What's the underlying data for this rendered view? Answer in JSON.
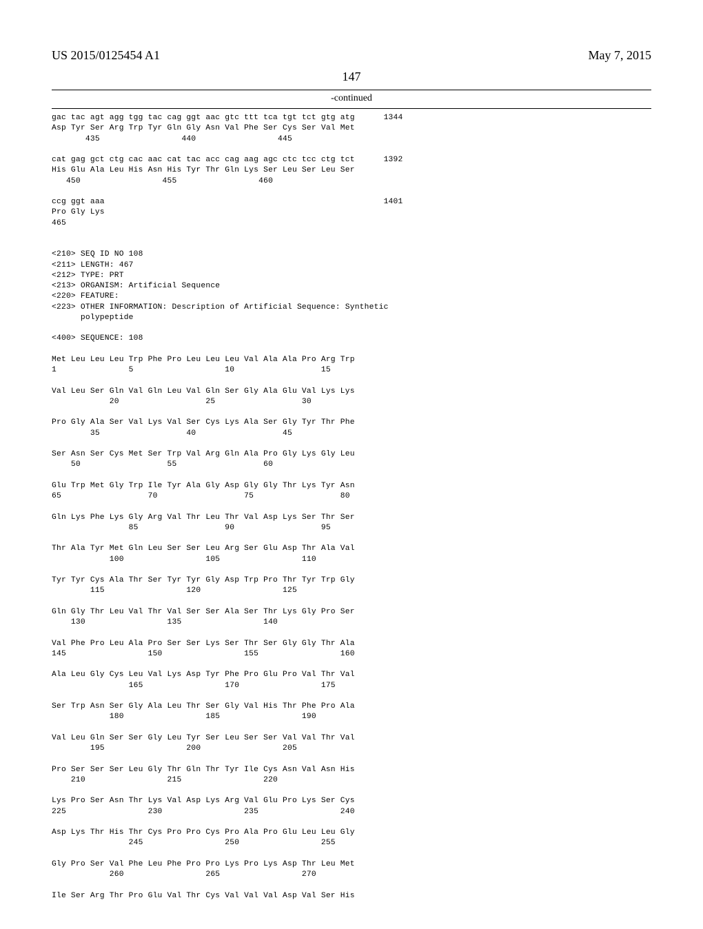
{
  "header": {
    "patent_number": "US 2015/0125454 A1",
    "date": "May 7, 2015",
    "page_number": "147",
    "continued": "-continued"
  },
  "seq_lines": [
    "gac tac agt agg tgg tac cag ggt aac gtc ttt tca tgt tct gtg atg      1344",
    "Asp Tyr Ser Arg Trp Tyr Gln Gly Asn Val Phe Ser Cys Ser Val Met",
    "       435                 440                 445",
    "",
    "cat gag gct ctg cac aac cat tac acc cag aag agc ctc tcc ctg tct      1392",
    "His Glu Ala Leu His Asn His Tyr Thr Gln Lys Ser Leu Ser Leu Ser",
    "   450                 455                 460",
    "",
    "ccg ggt aaa                                                          1401",
    "Pro Gly Lys",
    "465",
    "",
    "",
    "<210> SEQ ID NO 108",
    "<211> LENGTH: 467",
    "<212> TYPE: PRT",
    "<213> ORGANISM: Artificial Sequence",
    "<220> FEATURE:",
    "<223> OTHER INFORMATION: Description of Artificial Sequence: Synthetic",
    "      polypeptide",
    "",
    "<400> SEQUENCE: 108",
    "",
    "Met Leu Leu Leu Trp Phe Pro Leu Leu Leu Val Ala Ala Pro Arg Trp",
    "1               5                   10                  15",
    "",
    "Val Leu Ser Gln Val Gln Leu Val Gln Ser Gly Ala Glu Val Lys Lys",
    "            20                  25                  30",
    "",
    "Pro Gly Ala Ser Val Lys Val Ser Cys Lys Ala Ser Gly Tyr Thr Phe",
    "        35                  40                  45",
    "",
    "Ser Asn Ser Cys Met Ser Trp Val Arg Gln Ala Pro Gly Lys Gly Leu",
    "    50                  55                  60",
    "",
    "Glu Trp Met Gly Trp Ile Tyr Ala Gly Asp Gly Gly Thr Lys Tyr Asn",
    "65                  70                  75                  80",
    "",
    "Gln Lys Phe Lys Gly Arg Val Thr Leu Thr Val Asp Lys Ser Thr Ser",
    "                85                  90                  95",
    "",
    "Thr Ala Tyr Met Gln Leu Ser Ser Leu Arg Ser Glu Asp Thr Ala Val",
    "            100                 105                 110",
    "",
    "Tyr Tyr Cys Ala Thr Ser Tyr Tyr Gly Asp Trp Pro Thr Tyr Trp Gly",
    "        115                 120                 125",
    "",
    "Gln Gly Thr Leu Val Thr Val Ser Ser Ala Ser Thr Lys Gly Pro Ser",
    "    130                 135                 140",
    "",
    "Val Phe Pro Leu Ala Pro Ser Ser Lys Ser Thr Ser Gly Gly Thr Ala",
    "145                 150                 155                 160",
    "",
    "Ala Leu Gly Cys Leu Val Lys Asp Tyr Phe Pro Glu Pro Val Thr Val",
    "                165                 170                 175",
    "",
    "Ser Trp Asn Ser Gly Ala Leu Thr Ser Gly Val His Thr Phe Pro Ala",
    "            180                 185                 190",
    "",
    "Val Leu Gln Ser Ser Gly Leu Tyr Ser Leu Ser Ser Val Val Thr Val",
    "        195                 200                 205",
    "",
    "Pro Ser Ser Ser Leu Gly Thr Gln Thr Tyr Ile Cys Asn Val Asn His",
    "    210                 215                 220",
    "",
    "Lys Pro Ser Asn Thr Lys Val Asp Lys Arg Val Glu Pro Lys Ser Cys",
    "225                 230                 235                 240",
    "",
    "Asp Lys Thr His Thr Cys Pro Pro Cys Pro Ala Pro Glu Leu Leu Gly",
    "                245                 250                 255",
    "",
    "Gly Pro Ser Val Phe Leu Phe Pro Pro Lys Pro Lys Asp Thr Leu Met",
    "            260                 265                 270",
    "",
    "Ile Ser Arg Thr Pro Glu Val Thr Cys Val Val Val Asp Val Ser His"
  ]
}
